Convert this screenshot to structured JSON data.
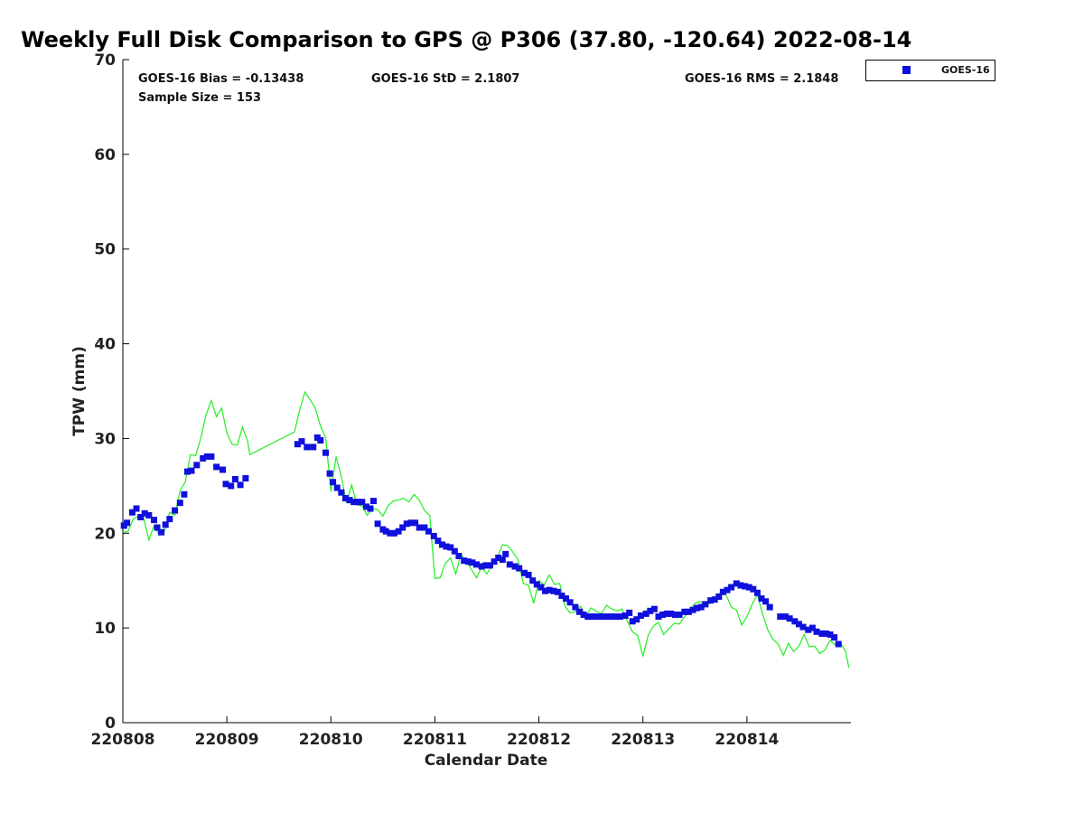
{
  "chart_data": {
    "type": "scatter",
    "title": "Weekly Full Disk Comparison to GPS @ P306 (37.80, -120.64) 2022-08-14",
    "xlabel": "Calendar Date",
    "ylabel": "TPW (mm)",
    "xlim": [
      220808,
      220815
    ],
    "ylim": [
      0,
      70
    ],
    "yticks": [
      0,
      10,
      20,
      30,
      40,
      50,
      60,
      70
    ],
    "xticks": [
      {
        "value": 220808,
        "label": "220808"
      },
      {
        "value": 220809,
        "label": "220809"
      },
      {
        "value": 220810,
        "label": "220810"
      },
      {
        "value": 220811,
        "label": "220811"
      },
      {
        "value": 220812,
        "label": "220812"
      },
      {
        "value": 220813,
        "label": "220813"
      },
      {
        "value": 220814,
        "label": "220814"
      }
    ],
    "stats": {
      "bias": "GOES-16 Bias = -0.13438",
      "std": "GOES-16 StD = 2.1807",
      "rms": "GOES-16 RMS = 2.1848",
      "sample": "Sample Size = 153"
    },
    "legend": {
      "label": "GOES-16",
      "placement": "top-right, outside plot"
    },
    "colors": {
      "goes": "#1010dd",
      "gps": "#22ee22"
    },
    "series": [
      {
        "name": "GOES-16",
        "marker": "square",
        "points": [
          [
            0.01,
            20.8
          ],
          [
            0.04,
            21.1
          ],
          [
            0.09,
            22.2
          ],
          [
            0.13,
            22.6
          ],
          [
            0.17,
            21.7
          ],
          [
            0.21,
            22.1
          ],
          [
            0.25,
            21.9
          ],
          [
            0.3,
            21.4
          ],
          [
            0.33,
            20.6
          ],
          [
            0.37,
            20.1
          ],
          [
            0.41,
            20.9
          ],
          [
            0.45,
            21.5
          ],
          [
            0.5,
            22.4
          ],
          [
            0.55,
            23.2
          ],
          [
            0.59,
            24.1
          ],
          [
            0.62,
            26.5
          ],
          [
            0.66,
            26.6
          ],
          [
            0.71,
            27.2
          ],
          [
            0.77,
            27.9
          ],
          [
            0.81,
            28.1
          ],
          [
            0.85,
            28.1
          ],
          [
            0.9,
            27.0
          ],
          [
            0.96,
            26.7
          ],
          [
            0.99,
            25.2
          ],
          [
            1.04,
            25.0
          ],
          [
            1.08,
            25.7
          ],
          [
            1.13,
            25.1
          ],
          [
            1.18,
            25.8
          ],
          [
            1.68,
            29.4
          ],
          [
            1.72,
            29.7
          ],
          [
            1.77,
            29.1
          ],
          [
            1.83,
            29.1
          ],
          [
            1.87,
            30.1
          ],
          [
            1.9,
            29.8
          ],
          [
            1.95,
            28.5
          ],
          [
            1.99,
            26.3
          ],
          [
            2.02,
            25.4
          ],
          [
            2.06,
            24.8
          ],
          [
            2.1,
            24.3
          ],
          [
            2.14,
            23.7
          ],
          [
            2.18,
            23.5
          ],
          [
            2.22,
            23.3
          ],
          [
            2.26,
            23.3
          ],
          [
            2.3,
            23.3
          ],
          [
            2.34,
            22.8
          ],
          [
            2.38,
            22.6
          ],
          [
            2.41,
            23.4
          ],
          [
            2.45,
            21.0
          ],
          [
            2.5,
            20.4
          ],
          [
            2.53,
            20.2
          ],
          [
            2.57,
            20.0
          ],
          [
            2.61,
            20.0
          ],
          [
            2.65,
            20.2
          ],
          [
            2.69,
            20.6
          ],
          [
            2.73,
            21.0
          ],
          [
            2.77,
            21.1
          ],
          [
            2.81,
            21.1
          ],
          [
            2.85,
            20.6
          ],
          [
            2.9,
            20.6
          ],
          [
            2.94,
            20.2
          ],
          [
            2.99,
            19.7
          ],
          [
            3.03,
            19.2
          ],
          [
            3.07,
            18.8
          ],
          [
            3.11,
            18.6
          ],
          [
            3.15,
            18.5
          ],
          [
            3.19,
            18.1
          ],
          [
            3.23,
            17.6
          ],
          [
            3.28,
            17.1
          ],
          [
            3.32,
            17.0
          ],
          [
            3.36,
            16.9
          ],
          [
            3.4,
            16.7
          ],
          [
            3.45,
            16.5
          ],
          [
            3.49,
            16.6
          ],
          [
            3.53,
            16.6
          ],
          [
            3.57,
            17.0
          ],
          [
            3.61,
            17.4
          ],
          [
            3.65,
            17.2
          ],
          [
            3.68,
            17.8
          ],
          [
            3.72,
            16.7
          ],
          [
            3.77,
            16.5
          ],
          [
            3.81,
            16.3
          ],
          [
            3.86,
            15.8
          ],
          [
            3.9,
            15.6
          ],
          [
            3.94,
            15.0
          ],
          [
            3.98,
            14.6
          ],
          [
            4.02,
            14.3
          ],
          [
            4.06,
            13.9
          ],
          [
            4.1,
            14.0
          ],
          [
            4.14,
            13.9
          ],
          [
            4.18,
            13.8
          ],
          [
            4.22,
            13.4
          ],
          [
            4.26,
            13.1
          ],
          [
            4.3,
            12.7
          ],
          [
            4.35,
            12.2
          ],
          [
            4.39,
            11.7
          ],
          [
            4.43,
            11.4
          ],
          [
            4.47,
            11.2
          ],
          [
            4.5,
            11.2
          ],
          [
            4.54,
            11.2
          ],
          [
            4.58,
            11.2
          ],
          [
            4.62,
            11.2
          ],
          [
            4.66,
            11.2
          ],
          [
            4.7,
            11.2
          ],
          [
            4.74,
            11.2
          ],
          [
            4.78,
            11.2
          ],
          [
            4.83,
            11.3
          ],
          [
            4.87,
            11.6
          ],
          [
            4.9,
            10.7
          ],
          [
            4.94,
            10.9
          ],
          [
            4.98,
            11.3
          ],
          [
            5.03,
            11.5
          ],
          [
            5.07,
            11.8
          ],
          [
            5.11,
            12.0
          ],
          [
            5.15,
            11.2
          ],
          [
            5.19,
            11.4
          ],
          [
            5.23,
            11.5
          ],
          [
            5.27,
            11.5
          ],
          [
            5.31,
            11.4
          ],
          [
            5.35,
            11.4
          ],
          [
            5.4,
            11.7
          ],
          [
            5.44,
            11.7
          ],
          [
            5.48,
            11.9
          ],
          [
            5.52,
            12.1
          ],
          [
            5.56,
            12.2
          ],
          [
            5.6,
            12.5
          ],
          [
            5.65,
            12.9
          ],
          [
            5.69,
            13.0
          ],
          [
            5.73,
            13.3
          ],
          [
            5.77,
            13.8
          ],
          [
            5.81,
            14.0
          ],
          [
            5.85,
            14.3
          ],
          [
            5.9,
            14.7
          ],
          [
            5.94,
            14.5
          ],
          [
            5.98,
            14.4
          ],
          [
            6.02,
            14.3
          ],
          [
            6.06,
            14.1
          ],
          [
            6.1,
            13.7
          ],
          [
            6.14,
            13.1
          ],
          [
            6.18,
            12.8
          ],
          [
            6.22,
            12.2
          ],
          [
            6.32,
            11.2
          ],
          [
            6.37,
            11.2
          ],
          [
            6.41,
            11.0
          ],
          [
            6.46,
            10.7
          ],
          [
            6.5,
            10.4
          ],
          [
            6.54,
            10.1
          ],
          [
            6.59,
            9.8
          ],
          [
            6.63,
            10.0
          ],
          [
            6.67,
            9.6
          ],
          [
            6.72,
            9.4
          ],
          [
            6.76,
            9.4
          ],
          [
            6.8,
            9.3
          ],
          [
            6.84,
            9.0
          ],
          [
            6.88,
            8.3
          ]
        ]
      },
      {
        "name": "GPS",
        "marker": "line",
        "points": [
          [
            0.0,
            20.1
          ],
          [
            0.05,
            20.2
          ],
          [
            0.1,
            21.5
          ],
          [
            0.15,
            21.8
          ],
          [
            0.2,
            21.6
          ],
          [
            0.25,
            19.3
          ],
          [
            0.3,
            20.8
          ],
          [
            0.35,
            19.8
          ],
          [
            0.4,
            20.2
          ],
          [
            0.45,
            22.2
          ],
          [
            0.5,
            21.9
          ],
          [
            0.55,
            24.5
          ],
          [
            0.6,
            25.4
          ],
          [
            0.65,
            28.3
          ],
          [
            0.7,
            28.2
          ],
          [
            0.75,
            30.1
          ],
          [
            0.8,
            32.5
          ],
          [
            0.85,
            34.0
          ],
          [
            0.9,
            32.3
          ],
          [
            0.95,
            33.2
          ],
          [
            1.0,
            30.6
          ],
          [
            1.05,
            29.4
          ],
          [
            1.1,
            29.3
          ],
          [
            1.15,
            31.2
          ],
          [
            1.2,
            29.7
          ],
          [
            1.22,
            28.3
          ],
          [
            1.65,
            30.7
          ],
          [
            1.7,
            33.0
          ],
          [
            1.75,
            34.9
          ],
          [
            1.8,
            34.1
          ],
          [
            1.85,
            33.2
          ],
          [
            1.9,
            31.3
          ],
          [
            1.95,
            30.1
          ],
          [
            2.0,
            24.4
          ],
          [
            2.05,
            28.1
          ],
          [
            2.1,
            26.0
          ],
          [
            2.15,
            23.2
          ],
          [
            2.2,
            25.1
          ],
          [
            2.25,
            23.0
          ],
          [
            2.3,
            22.9
          ],
          [
            2.35,
            21.9
          ],
          [
            2.4,
            22.6
          ],
          [
            2.45,
            22.5
          ],
          [
            2.5,
            21.8
          ],
          [
            2.55,
            22.9
          ],
          [
            2.6,
            23.4
          ],
          [
            2.65,
            23.5
          ],
          [
            2.7,
            23.7
          ],
          [
            2.75,
            23.3
          ],
          [
            2.8,
            24.1
          ],
          [
            2.85,
            23.5
          ],
          [
            2.9,
            22.4
          ],
          [
            2.95,
            21.9
          ],
          [
            3.0,
            15.2
          ],
          [
            3.05,
            15.3
          ],
          [
            3.1,
            16.8
          ],
          [
            3.15,
            17.4
          ],
          [
            3.2,
            15.7
          ],
          [
            3.25,
            17.8
          ],
          [
            3.3,
            17.0
          ],
          [
            3.35,
            16.2
          ],
          [
            3.4,
            15.3
          ],
          [
            3.45,
            16.4
          ],
          [
            3.5,
            15.7
          ],
          [
            3.55,
            16.6
          ],
          [
            3.6,
            17.4
          ],
          [
            3.65,
            18.8
          ],
          [
            3.7,
            18.7
          ],
          [
            3.75,
            18.0
          ],
          [
            3.8,
            17.2
          ],
          [
            3.85,
            14.7
          ],
          [
            3.9,
            14.5
          ],
          [
            3.95,
            12.6
          ],
          [
            4.0,
            15.0
          ],
          [
            4.05,
            14.5
          ],
          [
            4.1,
            15.6
          ],
          [
            4.15,
            14.6
          ],
          [
            4.2,
            14.7
          ],
          [
            4.25,
            12.3
          ],
          [
            4.3,
            11.6
          ],
          [
            4.35,
            11.7
          ],
          [
            4.4,
            12.3
          ],
          [
            4.45,
            11.2
          ],
          [
            4.5,
            12.1
          ],
          [
            4.55,
            11.8
          ],
          [
            4.6,
            11.5
          ],
          [
            4.65,
            12.4
          ],
          [
            4.7,
            12.0
          ],
          [
            4.75,
            11.8
          ],
          [
            4.8,
            12.0
          ],
          [
            4.85,
            10.7
          ],
          [
            4.9,
            9.6
          ],
          [
            4.95,
            9.2
          ],
          [
            5.0,
            7.0
          ],
          [
            5.05,
            9.2
          ],
          [
            5.1,
            10.2
          ],
          [
            5.15,
            10.6
          ],
          [
            5.2,
            9.3
          ],
          [
            5.25,
            9.9
          ],
          [
            5.3,
            10.5
          ],
          [
            5.35,
            10.4
          ],
          [
            5.4,
            11.2
          ],
          [
            5.45,
            11.9
          ],
          [
            5.5,
            12.6
          ],
          [
            5.55,
            12.8
          ],
          [
            5.6,
            12.5
          ],
          [
            5.65,
            12.6
          ],
          [
            5.7,
            13.2
          ],
          [
            5.75,
            13.8
          ],
          [
            5.8,
            13.5
          ],
          [
            5.85,
            12.2
          ],
          [
            5.9,
            11.9
          ],
          [
            5.95,
            10.3
          ],
          [
            6.0,
            11.2
          ],
          [
            6.05,
            12.5
          ],
          [
            6.1,
            13.5
          ],
          [
            6.15,
            11.5
          ],
          [
            6.2,
            9.8
          ],
          [
            6.25,
            8.8
          ],
          [
            6.3,
            8.3
          ],
          [
            6.35,
            7.1
          ],
          [
            6.4,
            8.4
          ],
          [
            6.45,
            7.5
          ],
          [
            6.5,
            8.1
          ],
          [
            6.55,
            9.3
          ],
          [
            6.6,
            8.0
          ],
          [
            6.65,
            8.1
          ],
          [
            6.7,
            7.3
          ],
          [
            6.75,
            7.7
          ],
          [
            6.8,
            8.7
          ],
          [
            6.85,
            8.2
          ],
          [
            6.9,
            8.4
          ],
          [
            6.95,
            7.5
          ],
          [
            6.98,
            5.8
          ]
        ]
      }
    ]
  }
}
